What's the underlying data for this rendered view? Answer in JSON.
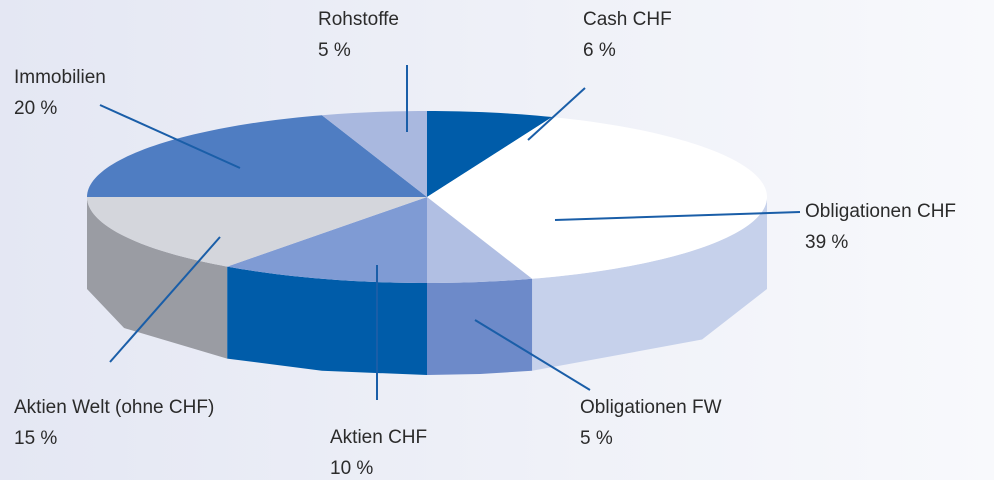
{
  "chart_data": {
    "type": "pie3d",
    "categories": [
      "Cash CHF",
      "Obligationen CHF",
      "Obligationen FW",
      "Aktien CHF",
      "Aktien Welt (ohne CHF)",
      "Immobilien",
      "Rohstoffe"
    ],
    "values": [
      6,
      39,
      5,
      10,
      15,
      20,
      5
    ],
    "value_labels": [
      "6 %",
      "39 %",
      "5 %",
      "10 %",
      "15 %",
      "20 %",
      "5 %"
    ],
    "colors": [
      "#005ca9",
      "#ffffff",
      "#b1bfe3",
      "#7f9bd4",
      "#d4d6dc",
      "#4f7dc2",
      "#a9b8df"
    ],
    "side_colors": [
      "#004f93",
      "#c6d1eb",
      "#6d8ac9",
      "#005ca9",
      "#9a9ca3",
      "#3d68ab",
      "#8a9bc8"
    ]
  }
}
